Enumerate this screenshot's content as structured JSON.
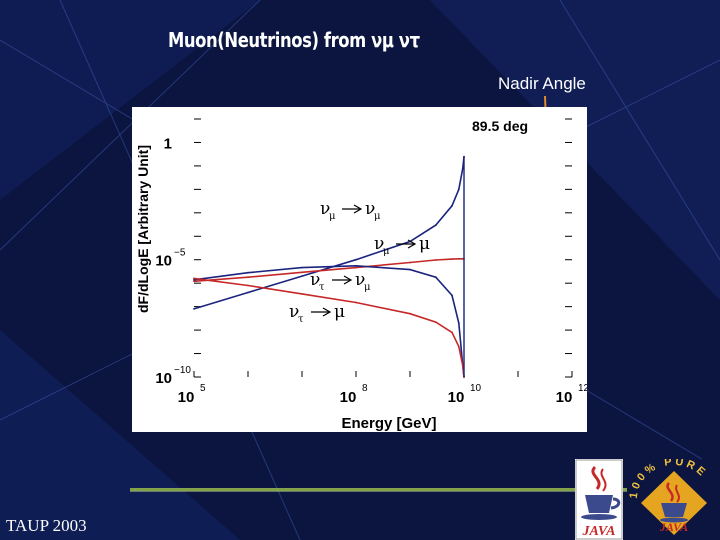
{
  "slide": {
    "title": "Muon(Neutrinos) from νμ ντ",
    "nadir_label": "Nadir Angle",
    "footer": "TAUP 2003"
  },
  "logos": {
    "left": {
      "text": "JAVA",
      "icon": "java-coffee-cup-icon"
    },
    "right": {
      "text": "JAVA",
      "ring_text": "100% PURE",
      "icon": "java-coffee-cup-icon"
    }
  },
  "colors": {
    "background": "#0b1540",
    "blue_series": "#1a237e",
    "red_series": "#c62828",
    "arrow": "#e08a2c"
  },
  "chart_data": {
    "type": "line",
    "title": "",
    "angle_label": "89.5 deg",
    "xlabel": "Energy [GeV]",
    "ylabel": "dF/dLogE [Arbitrary Unit]",
    "x_scale": "log",
    "y_scale": "log",
    "xlim": [
      100000,
      1000000000000
    ],
    "ylim": [
      1e-10,
      10
    ],
    "x_ticks": [
      {
        "base": "10",
        "exp": "5"
      },
      {
        "base": "10",
        "exp": "8"
      },
      {
        "base": "10",
        "exp": "10"
      },
      {
        "base": "10",
        "exp": "12"
      }
    ],
    "y_ticks": [
      {
        "base": "1",
        "exp": ""
      },
      {
        "base": "10",
        "exp": "−5"
      },
      {
        "base": "10",
        "exp": "−10"
      }
    ],
    "labels": [
      {
        "id": "numu-numu",
        "from": "ν",
        "from_sub": "μ",
        "to": "ν",
        "to_sub": "μ"
      },
      {
        "id": "numu-mu",
        "from": "ν",
        "from_sub": "μ",
        "to": "μ",
        "to_sub": ""
      },
      {
        "id": "nutau-numu",
        "from": "ν",
        "from_sub": "τ",
        "to": "ν",
        "to_sub": "μ"
      },
      {
        "id": "nutau-mu",
        "from": "ν",
        "from_sub": "τ",
        "to": "μ",
        "to_sub": ""
      }
    ],
    "series": [
      {
        "color": "blue",
        "x": [
          100000,
          1000000,
          10000000,
          100000000,
          1000000000,
          3000000000,
          6000000000,
          8000000000,
          9500000000,
          10000000000
        ],
        "y": [
          8e-08,
          4e-07,
          2e-06,
          1e-05,
          6e-05,
          0.0003,
          0.002,
          0.01,
          0.08,
          0.25
        ]
      },
      {
        "color": "red",
        "x": [
          100000,
          1000000,
          10000000,
          100000000,
          1000000000,
          3000000000,
          6000000000,
          8000000000,
          9500000000,
          10000000000
        ],
        "y": [
          1.2e-06,
          1.8e-06,
          2.9e-06,
          4.6e-06,
          7.6e-06,
          9.7e-06,
          1.06e-05,
          1.1e-05,
          1.1e-05,
          1.1e-05
        ]
      },
      {
        "color": "blue",
        "x": [
          100000,
          1000000,
          10000000,
          100000000,
          1000000000,
          3000000000,
          6000000000,
          8000000000,
          9500000000,
          10000000000
        ],
        "y": [
          1.4e-06,
          2.8e-06,
          4.6e-06,
          5.5e-06,
          3.8e-06,
          1.8e-06,
          3e-07,
          2e-08,
          3e-10,
          1e-10
        ]
      },
      {
        "color": "red",
        "x": [
          100000,
          1000000,
          10000000,
          100000000,
          1000000000,
          3000000000,
          6000000000,
          8000000000,
          9500000000,
          10000000000
        ],
        "y": [
          1.6e-06,
          8e-07,
          3.5e-07,
          1.5e-07,
          5e-08,
          2.2e-08,
          8e-09,
          2e-09,
          3e-10,
          1e-10
        ]
      }
    ]
  }
}
